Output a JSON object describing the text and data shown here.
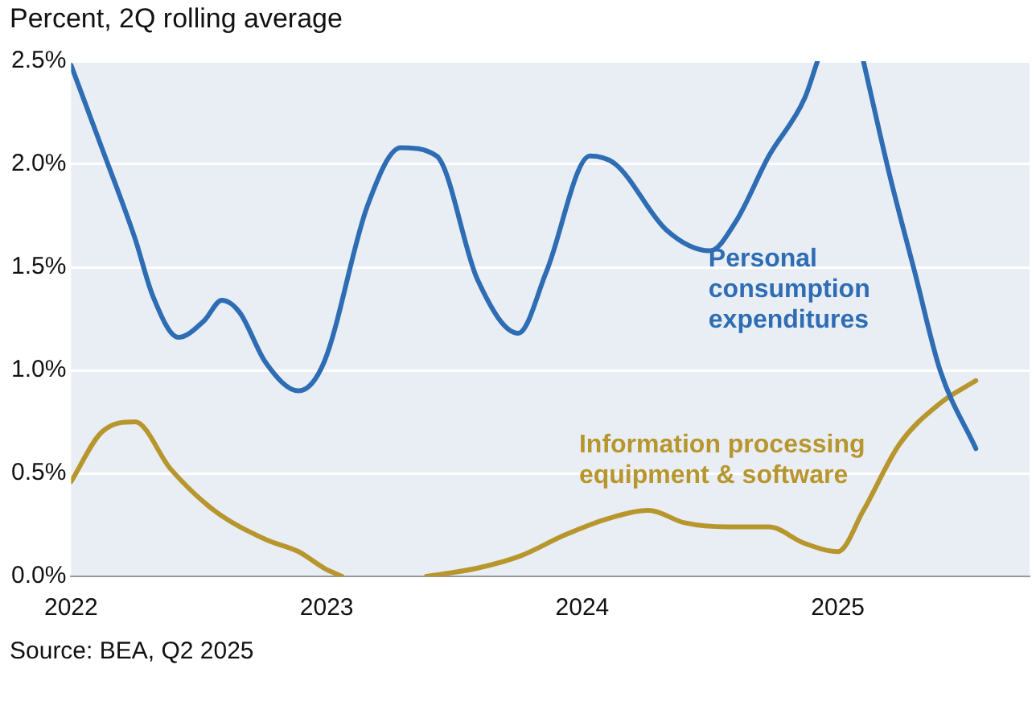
{
  "chart_data": {
    "type": "line",
    "subtitle": "Percent, 2Q rolling average",
    "annotations": [
      "Source: BEA, Q2 2025"
    ],
    "xlim": [
      2022,
      2025.75
    ],
    "xticks": [
      2022,
      2023,
      2024,
      2025
    ],
    "ylim": [
      0,
      2.5
    ],
    "yticks": [
      {
        "value": 0,
        "label": "0.0%"
      },
      {
        "value": 0.5,
        "label": "0.5%"
      },
      {
        "value": 1,
        "label": "1.0%"
      },
      {
        "value": 1.5,
        "label": "1.5%"
      },
      {
        "value": 2,
        "label": "2.0%"
      },
      {
        "value": 2.5,
        "label": "2.5%"
      }
    ],
    "grid": "y",
    "legend": false,
    "marker": "none",
    "line_style": "solid",
    "series": [
      {
        "name": "Personal consumption expenditures",
        "color": "#2e6db4",
        "x": [
          2022.0,
          2022.12,
          2022.25,
          2022.32,
          2022.42,
          2022.52,
          2022.59,
          2022.66,
          2022.76,
          2022.89,
          2022.99,
          2023.16,
          2023.29,
          2023.43,
          2023.59,
          2023.75,
          2023.86,
          2024.03,
          2024.13,
          2024.33,
          2024.5,
          2024.6,
          2024.73,
          2024.87,
          2024.92,
          2025.0,
          2025.1,
          2025.2,
          2025.3,
          2025.4,
          2025.54
        ],
        "values": [
          2.48,
          2.08,
          1.64,
          1.36,
          1.16,
          1.24,
          1.34,
          1.28,
          1.04,
          0.9,
          1.04,
          1.8,
          2.08,
          2.04,
          1.44,
          1.18,
          1.48,
          2.04,
          2.0,
          1.68,
          1.58,
          1.72,
          2.04,
          2.32,
          2.5,
          null,
          2.5,
          1.96,
          1.48,
          1.0,
          0.62
        ]
      },
      {
        "name": "Information processing equipment & software",
        "color": "#b8962e",
        "x": [
          2022.0,
          2022.12,
          2022.25,
          2022.39,
          2022.56,
          2022.76,
          2022.89,
          2022.99,
          2023.06,
          2023.25,
          2023.39,
          2023.59,
          2023.76,
          2023.93,
          2024.1,
          2024.26,
          2024.4,
          2024.57,
          2024.73,
          2024.87,
          2025.0,
          2025.1,
          2025.24,
          2025.4,
          2025.54
        ],
        "values": [
          0.46,
          0.7,
          0.75,
          0.52,
          0.32,
          0.18,
          0.12,
          0.04,
          0.0,
          null,
          0.0,
          0.04,
          0.1,
          0.2,
          0.28,
          0.32,
          0.26,
          0.24,
          0.24,
          0.16,
          0.12,
          0.32,
          0.64,
          0.84,
          0.95
        ]
      }
    ]
  }
}
